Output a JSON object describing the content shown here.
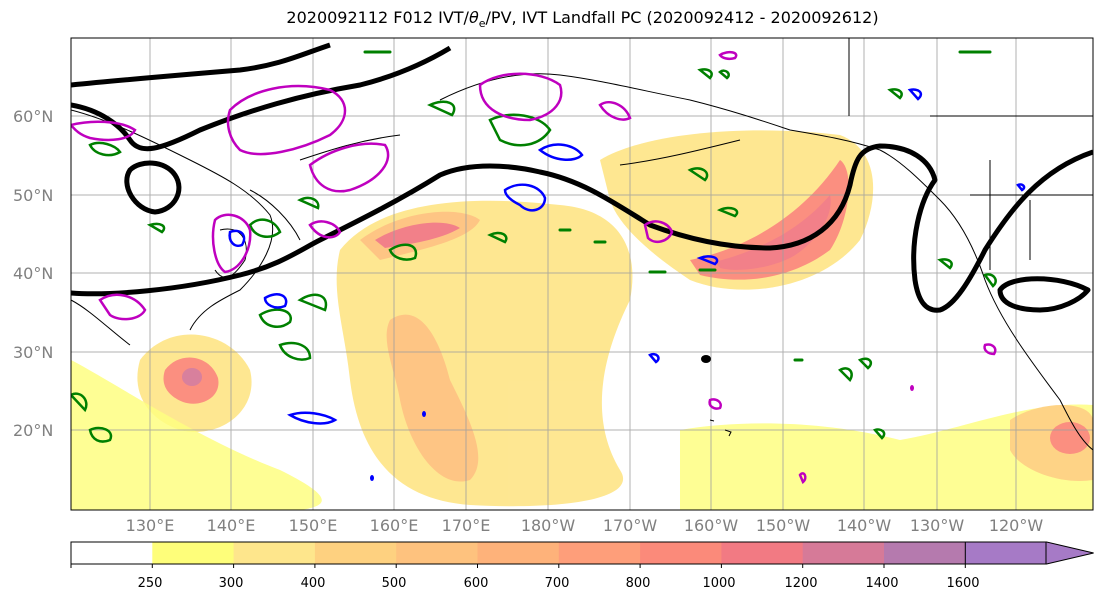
{
  "title": "2020092112 F012 IVT/θe/PV, IVT Landfall PC (2020092412 - 2020092612)",
  "title_parts": {
    "prefix": "2020092112 F012 IVT/",
    "theta": "θ",
    "theta_sub": "e",
    "suffix": "/PV, IVT Landfall PC (2020092412 - 2020092612)"
  },
  "map": {
    "lat_labels": [
      "60°N",
      "50°N",
      "40°N",
      "30°N",
      "20°N"
    ],
    "lon_labels": [
      "130°E",
      "140°E",
      "150°E",
      "160°E",
      "170°E",
      "180°W",
      "170°W",
      "160°W",
      "150°W",
      "140°W",
      "130°W",
      "120°W"
    ],
    "gridlines": true,
    "contour_colors": {
      "theta_e": "#000000",
      "pv_green": "#008000",
      "pv_blue": "#0000ff",
      "landfall_magenta": "#bf00bf"
    }
  },
  "colorbar": {
    "ticks": [
      "250",
      "300",
      "400",
      "500",
      "600",
      "700",
      "800",
      "1000",
      "1200",
      "1400",
      "1600"
    ],
    "bins": [
      {
        "color": "#ffffff"
      },
      {
        "color": "#fefe7a"
      },
      {
        "color": "#fee68c"
      },
      {
        "color": "#fed180"
      },
      {
        "color": "#fec27e"
      },
      {
        "color": "#feb27a"
      },
      {
        "color": "#fe9e7a"
      },
      {
        "color": "#fb8a7a"
      },
      {
        "color": "#f27a83"
      },
      {
        "color": "#d67a98"
      },
      {
        "color": "#b57aae"
      },
      {
        "color": "#a67ac6"
      }
    ],
    "extend": "max"
  }
}
